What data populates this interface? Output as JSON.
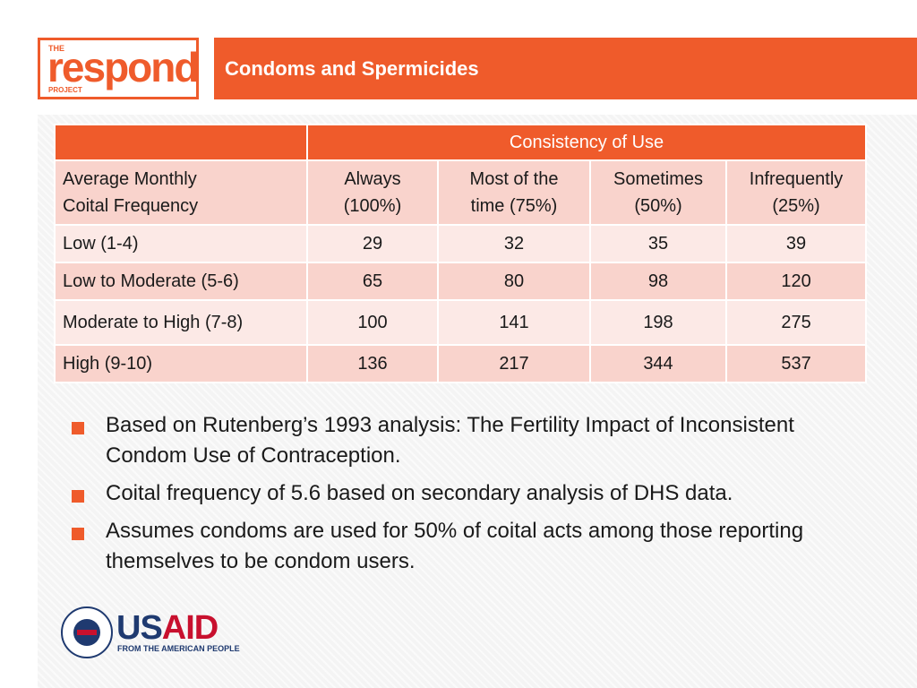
{
  "logo": {
    "the": "THE",
    "word": "respond",
    "project": "PROJECT"
  },
  "header": {
    "title": "Condoms and Spermicides"
  },
  "table": {
    "group_header": "Consistency of Use",
    "row_header_line1": "Average Monthly",
    "row_header_line2": "Coital Frequency",
    "columns": [
      {
        "line1": "Always",
        "line2": "(100%)"
      },
      {
        "line1": "Most of the",
        "line2": "time (75%)"
      },
      {
        "line1": "Sometimes",
        "line2": "(50%)"
      },
      {
        "line1": "Infrequently",
        "line2": "(25%)"
      }
    ],
    "rows": [
      {
        "label": "Low (1-4)",
        "values": [
          "29",
          "32",
          "35",
          "39"
        ]
      },
      {
        "label": "Low to Moderate (5-6)",
        "values": [
          "65",
          "80",
          "98",
          "120"
        ]
      },
      {
        "label": "Moderate to High (7-8)",
        "values": [
          "100",
          "141",
          "198",
          "275"
        ]
      },
      {
        "label": "High (9-10)",
        "values": [
          "136",
          "217",
          "344",
          "537"
        ]
      }
    ]
  },
  "bullets": [
    "Based on Rutenberg’s 1993 analysis:  The Fertility Impact of Inconsistent Condom Use of Contraception.",
    "Coital frequency of 5.6 based on secondary analysis of DHS data.",
    "Assumes condoms are used for 50% of coital acts among those reporting themselves to be condom users."
  ],
  "usaid": {
    "us": "US",
    "aid": "AID",
    "tagline": "FROM THE AMERICAN PEOPLE"
  },
  "colors": {
    "accent": "#ef5b2b",
    "row_light": "#fce9e6",
    "row_dark": "#f9d3cc",
    "usaid_blue": "#1f3a70",
    "usaid_red": "#c8102e"
  }
}
